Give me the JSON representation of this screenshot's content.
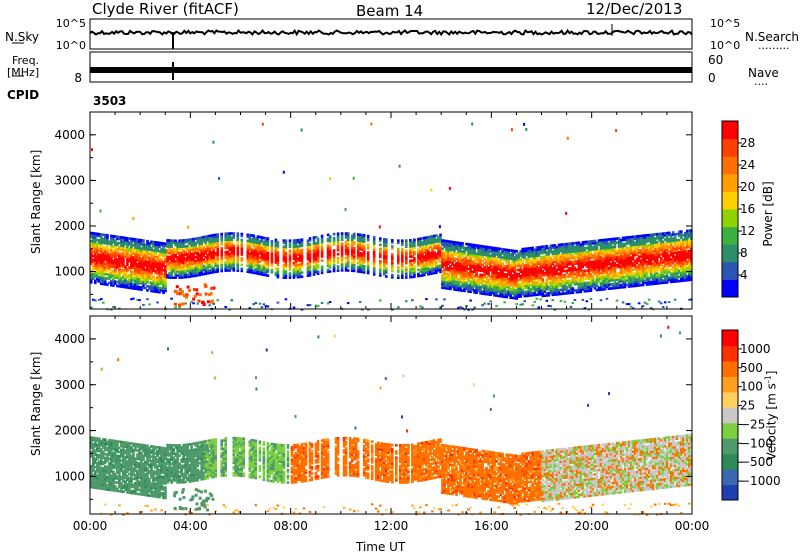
{
  "title": {
    "station": "Clyde River (fitACF)",
    "beam": "Beam 14",
    "date": "12/Dec/2013"
  },
  "labels": {
    "nsky": "N.Sky",
    "nsearch": "N.Search",
    "nsearch_dots": ".........",
    "freq": "Freq.",
    "mhz": "[MHz]",
    "nave": "Nave",
    "nave_dots": "....",
    "cpid": "CPID",
    "cpid_value": "3503"
  },
  "chart_data": [
    {
      "type": "line",
      "panel": "noise",
      "left_axis": {
        "name": "N.Sky",
        "ticks": [
          "10^5",
          "10^0"
        ]
      },
      "right_axis": {
        "name": "N.Search",
        "ticks": [
          "10^5",
          "10^0"
        ]
      },
      "series": [
        {
          "name": "N.Sky",
          "level": 0.55,
          "style": "solid"
        }
      ]
    },
    {
      "type": "line",
      "panel": "frequency",
      "left_axis": {
        "ticks": [
          "8"
        ],
        "label": "Freq. [MHz]"
      },
      "right_axis": {
        "ticks": [
          "60",
          "0"
        ],
        "label": "Nave"
      },
      "series": [
        {
          "name": "Freq.",
          "level": 0.35
        }
      ]
    },
    {
      "type": "heatmap",
      "panel": "power",
      "ylabel": "Slant Range [km]",
      "yticks": [
        1000,
        2000,
        3000,
        4000
      ],
      "ylim": [
        180,
        4500
      ],
      "xlim": [
        0,
        24
      ],
      "colorbar": {
        "label": "Power [dB]",
        "ticks": [
          4,
          8,
          12,
          16,
          20,
          24,
          28
        ],
        "colors": [
          "#0000ff",
          "#2a55b3",
          "#2d8f6a",
          "#3cb043",
          "#8fd400",
          "#ffd000",
          "#ffa000",
          "#ff7000",
          "#ff4000",
          "#ff0000"
        ]
      }
    },
    {
      "type": "heatmap",
      "panel": "velocity",
      "ylabel": "Slant Range [km]",
      "yticks": [
        1000,
        2000,
        3000,
        4000
      ],
      "ylim": [
        180,
        4500
      ],
      "xlim": [
        0,
        24
      ],
      "colorbar": {
        "label": "Velocity [m s-1]",
        "ticks": [
          "1000",
          "500",
          "100",
          "25",
          "−25",
          "−100",
          "−500",
          "−1000"
        ],
        "colors": [
          "#1f3fb0",
          "#3c68b0",
          "#2f8a5a",
          "#4f9a6a",
          "#7ccf40",
          "#c8c8c8",
          "#ffd060",
          "#ffa020",
          "#ff7000",
          "#ff3000",
          "#ff0000"
        ]
      }
    }
  ],
  "xaxis": {
    "label": "Time UT",
    "ticks": [
      "00:00",
      "04:00",
      "08:00",
      "12:00",
      "16:00",
      "20:00",
      "00:00"
    ]
  }
}
